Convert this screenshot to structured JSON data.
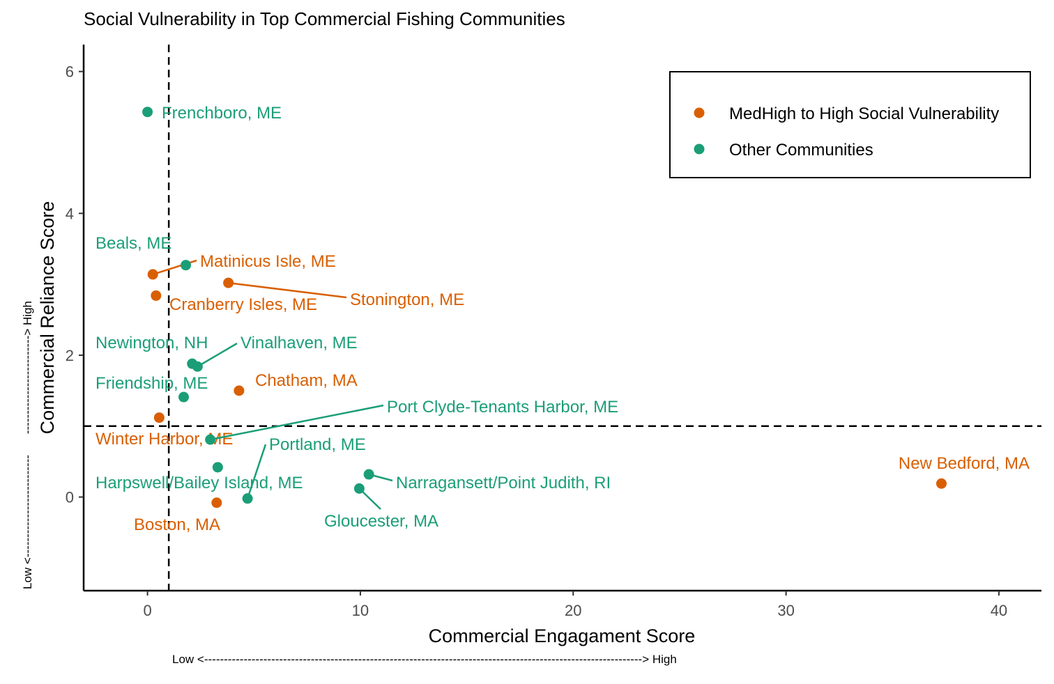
{
  "chart_data": {
    "type": "scatter",
    "title": "Social Vulnerability in Top Commercial Fishing Communities",
    "xlabel": "Commercial Engagament Score",
    "ylabel": "Commercial Reliance Score",
    "x_direction_note": "Low <---------------------------------------------------------------------------------------------------------------> High",
    "y_direction_low": "Low <--------------------------",
    "y_direction_high": "-------------------------> High",
    "xlim": [
      -3,
      42
    ],
    "ylim": [
      -1.32,
      6.38
    ],
    "x_ticks": [
      0,
      10,
      20,
      30,
      40
    ],
    "y_ticks": [
      0,
      2,
      4,
      6
    ],
    "x_tick_labels": [
      "0",
      "10",
      "20",
      "30",
      "40"
    ],
    "y_tick_labels": [
      "0",
      "2",
      "4",
      "6"
    ],
    "reference_lines": {
      "vertical_x": 1,
      "horizontal_y": 1
    },
    "grid": false,
    "legend_position": "top-right",
    "legend": [
      {
        "key": "high",
        "label": "MedHigh to High Social Vulnerability",
        "color": "#D95F02"
      },
      {
        "key": "other",
        "label": "Other Communities",
        "color": "#1B9E77"
      }
    ],
    "points": [
      {
        "name": "Frenchboro, ME",
        "group": "other",
        "x": 0.0,
        "y": 5.43
      },
      {
        "name": "Beals, ME",
        "group": "other",
        "x": 1.8,
        "y": 3.27
      },
      {
        "name": "Matinicus Isle, ME",
        "group": "high",
        "x": 0.25,
        "y": 3.14
      },
      {
        "name": "Stonington, ME",
        "group": "high",
        "x": 3.8,
        "y": 3.02
      },
      {
        "name": "Cranberry Isles, ME",
        "group": "high",
        "x": 0.4,
        "y": 2.84
      },
      {
        "name": "Newington, NH",
        "group": "other",
        "x": 2.1,
        "y": 1.88
      },
      {
        "name": "Vinalhaven, ME",
        "group": "other",
        "x": 2.35,
        "y": 1.84
      },
      {
        "name": "Chatham, MA",
        "group": "high",
        "x": 4.3,
        "y": 1.5
      },
      {
        "name": "Friendship, ME",
        "group": "other",
        "x": 1.7,
        "y": 1.41
      },
      {
        "name": "Winter Harbor, ME",
        "group": "high",
        "x": 0.55,
        "y": 1.12
      },
      {
        "name": "Port Clyde-Tenants Harbor, ME",
        "group": "other",
        "x": 2.95,
        "y": 0.81
      },
      {
        "name": "Harpswell/Bailey Island, ME",
        "group": "other",
        "x": 3.3,
        "y": 0.42
      },
      {
        "name": "Narragansett/Point Judith, RI",
        "group": "other",
        "x": 10.4,
        "y": 0.32
      },
      {
        "name": "New Bedford, MA",
        "group": "high",
        "x": 37.3,
        "y": 0.19
      },
      {
        "name": "Gloucester, MA",
        "group": "other",
        "x": 9.95,
        "y": 0.12
      },
      {
        "name": "Portland, ME",
        "group": "other",
        "x": 4.7,
        "y": -0.02
      },
      {
        "name": "Boston, MA",
        "group": "high",
        "x": 3.25,
        "y": -0.08
      }
    ]
  }
}
